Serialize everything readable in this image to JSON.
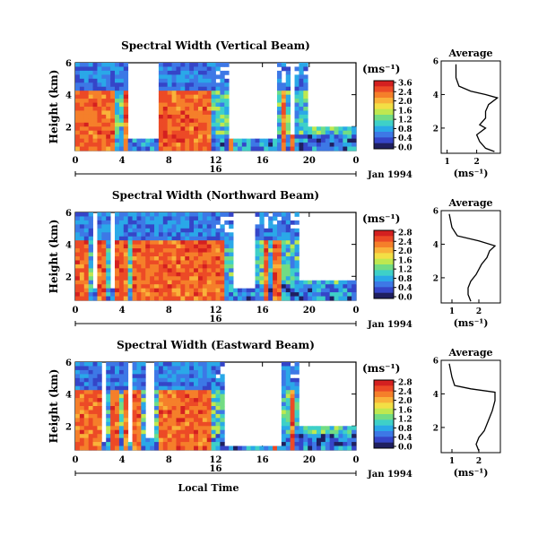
{
  "panel_x_ticks": [
    "0",
    "4",
    "8",
    "12",
    "16",
    "20",
    "0"
  ],
  "date_tick": "16",
  "date_label": "Jan 1994",
  "xlabel": "Local Time",
  "ylabel": "Height (km)",
  "y_ticks": [
    "6",
    "4",
    "2"
  ],
  "colorbar": {
    "unit": "(ms⁻¹)",
    "tick_labels": [
      "3.6",
      "2.4",
      "2.0",
      "1.6",
      "1.2",
      "0.8",
      "0.4",
      "0.0"
    ],
    "colors": [
      "#d42020",
      "#ec4a26",
      "#f57f2a",
      "#f9b23a",
      "#f3df45",
      "#bfe850",
      "#72dc84",
      "#3ed0c8",
      "#2aa8e8",
      "#3d78e6",
      "#3545c8",
      "#1f1f60"
    ]
  },
  "average": {
    "title": "Average",
    "xlabel": "(ms⁻¹)",
    "x_ticks": [
      "1",
      "2"
    ],
    "y_ticks": [
      "6",
      "4",
      "2"
    ]
  },
  "chart_data": [
    {
      "type": "heatmap",
      "title": "Spectral Width (Vertical Beam)",
      "x_range_hours": [
        0,
        24
      ],
      "y_range_km": [
        0.5,
        6
      ],
      "colorbar_ticks": [
        3.6,
        2.4,
        2.0,
        1.6,
        1.2,
        0.8,
        0.4,
        0.0
      ],
      "cbar_top_label": "3.6",
      "average_profile": {
        "x": [
          1.3,
          1.3,
          1.4,
          1.8,
          2.3,
          2.7,
          2.4,
          2.3,
          2.3,
          2.1,
          2.3,
          2.0,
          2.1,
          2.3,
          2.6
        ],
        "y": [
          5.8,
          5.0,
          4.5,
          4.2,
          4.0,
          3.8,
          3.4,
          3.0,
          2.6,
          2.2,
          2.0,
          1.6,
          1.2,
          0.8,
          0.6
        ],
        "x_range": [
          0.8,
          2.8
        ]
      }
    },
    {
      "type": "heatmap",
      "title": "Spectral Width (Northward Beam)",
      "x_range_hours": [
        0,
        24
      ],
      "y_range_km": [
        0.5,
        6
      ],
      "colorbar_ticks": [
        2.8,
        2.4,
        2.0,
        1.6,
        1.2,
        0.8,
        0.4,
        0.0
      ],
      "cbar_top_label": "2.8",
      "average_profile": {
        "x": [
          0.9,
          1.0,
          1.2,
          2.0,
          2.6,
          2.4,
          2.3,
          2.1,
          1.9,
          1.7,
          1.6,
          1.6,
          1.7
        ],
        "y": [
          5.8,
          5.0,
          4.5,
          4.2,
          3.9,
          3.6,
          3.2,
          2.8,
          2.2,
          1.8,
          1.4,
          1.0,
          0.6
        ],
        "x_range": [
          0.6,
          2.8
        ]
      }
    },
    {
      "type": "heatmap",
      "title": "Spectral Width (Eastward Beam)",
      "x_range_hours": [
        0,
        24
      ],
      "y_range_km": [
        0.5,
        6
      ],
      "colorbar_ticks": [
        2.8,
        2.4,
        2.0,
        1.6,
        1.2,
        0.8,
        0.4,
        0.0
      ],
      "cbar_top_label": "2.8",
      "average_profile": {
        "x": [
          0.9,
          1.0,
          1.1,
          1.7,
          2.6,
          2.6,
          2.5,
          2.4,
          2.3,
          2.2,
          2.0,
          1.9,
          2.0
        ],
        "y": [
          5.8,
          5.0,
          4.5,
          4.3,
          4.1,
          3.6,
          3.0,
          2.6,
          2.2,
          1.8,
          1.4,
          1.0,
          0.6
        ],
        "x_range": [
          0.6,
          2.8
        ]
      }
    }
  ]
}
